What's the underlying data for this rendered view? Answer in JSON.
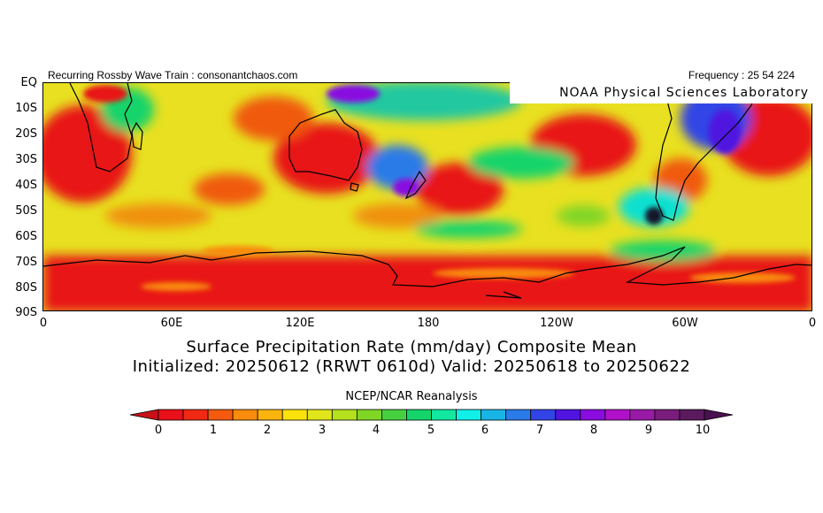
{
  "header": {
    "left_text": "Recurring Rossby Wave Train : consonantchaos.com",
    "right_text": "Frequency : 25 54 224"
  },
  "map": {
    "credit": "NOAA Physical Sciences Laboratory",
    "region": "Southern Hemisphere, 0 to 90S, global longitudes",
    "lat_labels": [
      "EQ",
      "10S",
      "20S",
      "30S",
      "40S",
      "50S",
      "60S",
      "70S",
      "80S",
      "90S"
    ],
    "lon_labels": [
      "0",
      "60E",
      "120E",
      "180",
      "120W",
      "60W",
      "0"
    ]
  },
  "title": {
    "line1": "Surface Precipitation Rate (mm/day) Composite Mean",
    "line2": "Initialized: 20250612 (RRWT 0610d) Valid: 20250618 to 20250622"
  },
  "dataset": "NCEP/NCAR Reanalysis",
  "colorbar": {
    "labels": [
      "0",
      "1",
      "2",
      "3",
      "4",
      "5",
      "6",
      "7",
      "8",
      "9",
      "10"
    ],
    "colors": [
      "#e8101a",
      "#f02814",
      "#f55a0f",
      "#f98c0c",
      "#fbb40e",
      "#fbe20c",
      "#e0e61a",
      "#b4e01e",
      "#80d625",
      "#46d040",
      "#14d46a",
      "#12e8a0",
      "#10f0e8",
      "#18b4e6",
      "#2a7ae8",
      "#3244e6",
      "#5014e0",
      "#8a0ce0",
      "#b010c8",
      "#9a1aa8",
      "#7a1c7c",
      "#5a1a5c"
    ],
    "under_color": "#c81018",
    "over_color": "#4a1050"
  }
}
